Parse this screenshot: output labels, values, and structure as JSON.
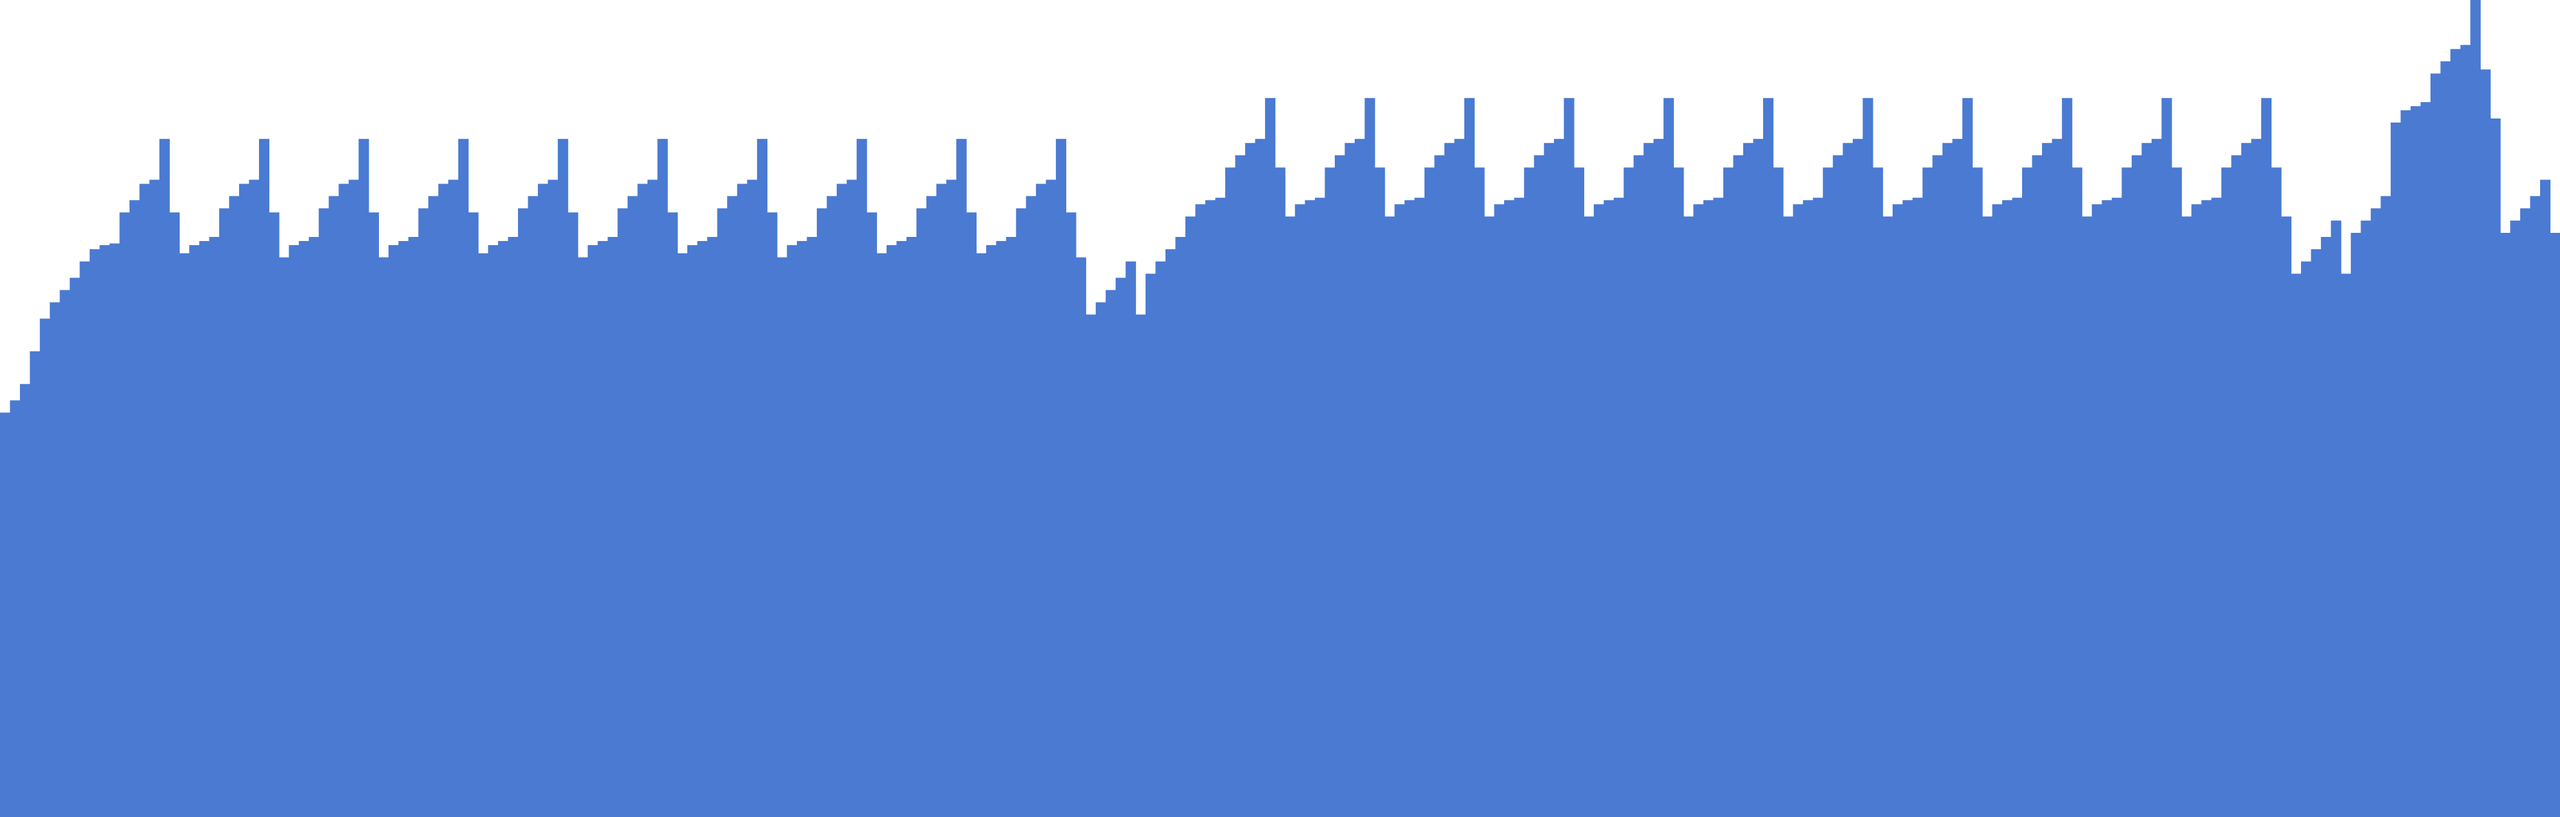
{
  "chart_data": {
    "type": "area",
    "step": true,
    "grid": false,
    "legend": "none",
    "title": "",
    "xlabel": "",
    "ylabel": "",
    "ylim": [
      0,
      100
    ],
    "fill_color": "#4a7ad2",
    "series": [
      {
        "values": [
          49.5,
          51,
          53,
          57,
          61,
          63,
          64.5,
          66,
          68,
          69.5,
          70,
          70.2,
          74,
          75.5,
          77.5,
          78,
          83,
          74,
          69,
          70,
          70.5,
          71,
          74.5,
          76,
          77.5,
          78,
          83,
          74,
          68.5,
          70,
          70.5,
          71,
          74.5,
          76,
          77.5,
          78,
          83,
          74,
          68.5,
          70,
          70.5,
          71,
          74.5,
          76,
          77.5,
          78,
          83,
          74,
          69,
          70,
          70.5,
          71,
          74.5,
          76,
          77.5,
          78,
          83,
          74,
          68.5,
          70,
          70.5,
          71,
          74.5,
          76,
          77.5,
          78,
          83,
          74,
          69,
          70,
          70.5,
          71,
          74.5,
          76,
          77.5,
          78,
          83,
          74,
          68.5,
          70,
          70.5,
          71,
          74.5,
          76,
          77.5,
          78,
          83,
          74,
          69,
          70,
          70.5,
          71,
          74.5,
          76,
          77.5,
          78,
          83,
          74,
          69,
          70,
          70.5,
          71,
          74.5,
          76,
          77.5,
          78,
          83,
          74,
          68.5,
          61.5,
          63,
          64.5,
          66,
          68,
          61.5,
          66.5,
          68,
          69.5,
          71,
          73.5,
          75,
          75.5,
          75.8,
          79.5,
          81,
          82.5,
          83,
          88,
          79.5,
          73.5,
          75,
          75.5,
          75.8,
          79.5,
          81,
          82.5,
          83,
          88,
          79.5,
          73.5,
          75,
          75.5,
          75.8,
          79.5,
          81,
          82.5,
          83,
          88,
          79.5,
          73.5,
          75,
          75.5,
          75.8,
          79.5,
          81,
          82.5,
          83,
          88,
          79.5,
          73.5,
          75,
          75.5,
          75.8,
          79.5,
          81,
          82.5,
          83,
          88,
          79.5,
          73.5,
          75,
          75.5,
          75.8,
          79.5,
          81,
          82.5,
          83,
          88,
          79.5,
          73.5,
          75,
          75.5,
          75.8,
          79.5,
          81,
          82.5,
          83,
          88,
          79.5,
          73.5,
          75,
          75.5,
          75.8,
          79.5,
          81,
          82.5,
          83,
          88,
          79.5,
          73.5,
          75,
          75.5,
          75.8,
          79.5,
          81,
          82.5,
          83,
          88,
          79.5,
          73.5,
          75,
          75.5,
          75.8,
          79.5,
          81,
          82.5,
          83,
          88,
          79.5,
          73.5,
          75,
          75.5,
          75.8,
          79.5,
          81,
          82.5,
          83,
          88,
          79.5,
          73.5,
          66.5,
          68,
          69.5,
          71,
          73,
          66.5,
          71.5,
          73,
          74.5,
          76,
          85,
          86.5,
          87,
          87.5,
          91,
          92.5,
          94,
          94.5,
          100,
          91.5,
          85.5,
          71.5,
          73,
          74.5,
          76,
          78,
          71.5
        ]
      }
    ]
  }
}
